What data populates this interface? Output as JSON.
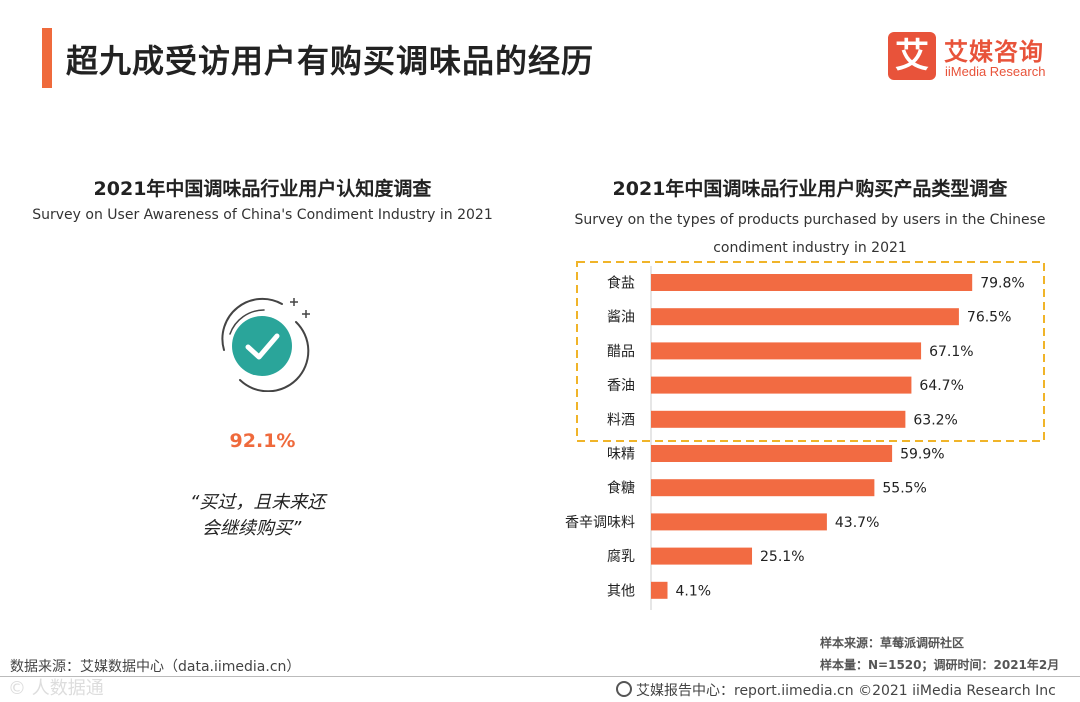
{
  "page": {
    "title": "超九成受访用户有购买调味品的经历"
  },
  "logo": {
    "mark": "艾",
    "cn": "艾媒咨询",
    "en": "iiMedia Research"
  },
  "left_panel": {
    "title": "2021年中国调味品行业用户认知度调查",
    "subtitle": "Survey on User Awareness of China's Condiment Industry in 2021",
    "percent_label": "92.1%",
    "quote_line1": "“买过，且未来还",
    "quote_line2": "会继续购买”"
  },
  "right_panel": {
    "title": "2021年中国调味品行业用户购买产品类型调查",
    "subtitle": "Survey on the types of products purchased by users in the Chinese condiment industry in 2021"
  },
  "colors": {
    "accent": "#ef6a3c",
    "bar": "#f26b42",
    "highlight_border": "#f0b429",
    "check_teal": "#2aa59a"
  },
  "chart_data": {
    "type": "bar",
    "orientation": "horizontal",
    "title": "2021年中国调味品行业用户购买产品类型调查",
    "categories": [
      "食盐",
      "酱油",
      "醋品",
      "香油",
      "料酒",
      "味精",
      "食糖",
      "香辛调味料",
      "腐乳",
      "其他"
    ],
    "values": [
      79.8,
      76.5,
      67.1,
      64.7,
      63.2,
      59.9,
      55.5,
      43.7,
      25.1,
      4.1
    ],
    "value_labels": [
      "79.8%",
      "76.5%",
      "67.1%",
      "64.7%",
      "63.2%",
      "59.9%",
      "55.5%",
      "43.7%",
      "25.1%",
      "4.1%"
    ],
    "unit": "%",
    "xlim": [
      0,
      100
    ],
    "highlighted_count": 5,
    "grid": false
  },
  "sources": {
    "sample_source": "样本来源：草莓派调研社区",
    "sample_size": "样本量：N=1520；调研时间：2021年2月",
    "data_source": "数据来源：艾媒数据中心（data.iimedia.cn）",
    "watermark": "©  人数据通",
    "footer": "艾媒报告中心：report.iimedia.cn  ©2021  iiMedia Research  Inc"
  }
}
